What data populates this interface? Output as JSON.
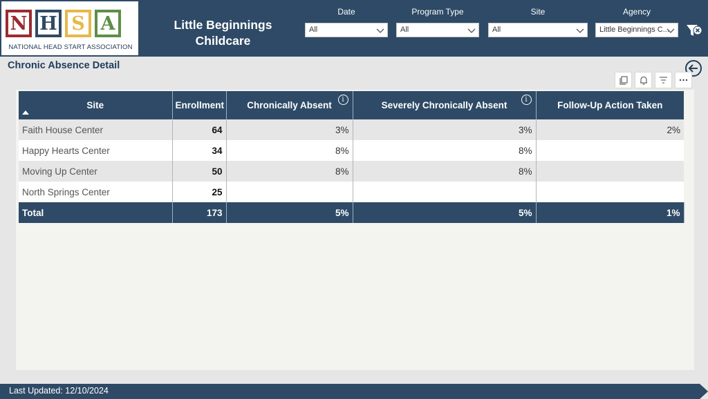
{
  "logo": {
    "letters": [
      {
        "char": "N",
        "color": "#9b2b30"
      },
      {
        "char": "H",
        "color": "#2e4a66"
      },
      {
        "char": "S",
        "color": "#e5b94a"
      },
      {
        "char": "A",
        "color": "#5e8f47"
      }
    ],
    "caption": "NATIONAL HEAD START ASSOCIATION"
  },
  "app_title": "Little Beginnings Childcare",
  "filters": [
    {
      "label": "Date",
      "value": "All"
    },
    {
      "label": "Program Type",
      "value": "All"
    },
    {
      "label": "Site",
      "value": "All"
    },
    {
      "label": "Agency",
      "value": "Little Beginnings C..."
    }
  ],
  "clear_filter_icon": "filter-clear-icon",
  "section_title": "Chronic Absence Detail",
  "toolbar_icons": [
    "copy-icon",
    "bell-icon",
    "filter-icon",
    "more-icon"
  ],
  "table": {
    "columns": [
      "Site",
      "Enrollment",
      "Chronically Absent",
      "Severely Chronically Absent",
      "Follow-Up Action Taken"
    ],
    "rows": [
      {
        "site": "Faith House Center",
        "enrollment": "64",
        "chronic": "3%",
        "severe": "3%",
        "followup": "2%"
      },
      {
        "site": "Happy Hearts Center",
        "enrollment": "34",
        "chronic": "8%",
        "severe": "8%",
        "followup": ""
      },
      {
        "site": "Moving Up Center",
        "enrollment": "50",
        "chronic": "8%",
        "severe": "8%",
        "followup": ""
      },
      {
        "site": "North Springs Center",
        "enrollment": "25",
        "chronic": "",
        "severe": "",
        "followup": ""
      }
    ],
    "total": {
      "site": "Total",
      "enrollment": "173",
      "chronic": "5%",
      "severe": "5%",
      "followup": "1%"
    }
  },
  "footer": "Last Updated: 12/10/2024",
  "colors": {
    "header_bg": "#2e4a66",
    "panel_bg": "#f3f3f0",
    "page_bg": "#e6e6e6"
  }
}
